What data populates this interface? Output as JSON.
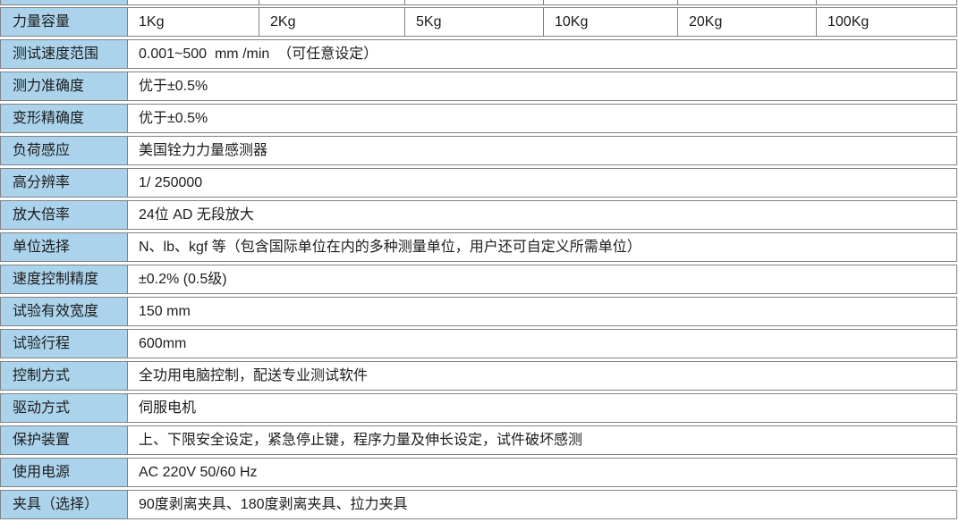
{
  "colors": {
    "label_bg": "#abd4ec",
    "border": "#7f8285",
    "cell_bg": "#ffffff",
    "text": "#1c1c1c"
  },
  "table": {
    "capacity": {
      "label": "力量容量",
      "values": [
        "1Kg",
        "2Kg",
        "5Kg",
        "10Kg",
        "20Kg",
        "100Kg"
      ]
    },
    "rows": [
      {
        "label": "测试速度范围",
        "value": "0.001~500  mm /min  （可任意设定）"
      },
      {
        "label": "测力准确度",
        "value": "优于±0.5%"
      },
      {
        "label": "变形精确度",
        "value": "优于±0.5%"
      },
      {
        "label": "负荷感应",
        "value": "美国铨力力量感测器"
      },
      {
        "label": "高分辨率",
        "value": "1/ 250000"
      },
      {
        "label": "放大倍率",
        "value": "24位 AD 无段放大"
      },
      {
        "label": "单位选择",
        "value": "N、lb、kgf 等（包含国际单位在内的多种测量单位，用户还可自定义所需单位）"
      },
      {
        "label": "速度控制精度",
        "value": "±0.2% (0.5级)"
      },
      {
        "label": "试验有效宽度",
        "value": "150 mm"
      },
      {
        "label": "试验行程",
        "value": "600mm"
      },
      {
        "label": "控制方式",
        "value": "全功用电脑控制，配送专业测试软件"
      },
      {
        "label": "驱动方式",
        "value": "伺服电机"
      },
      {
        "label": "保护装置",
        "value": "上、下限安全设定，紧急停止键，程序力量及伸长设定，试件破坏感测"
      },
      {
        "label": "使用电源",
        "value": "AC 220V 50/60 Hz"
      },
      {
        "label": "夹具（选择）",
        "value": "90度剥离夹具、180度剥离夹具、拉力夹具"
      }
    ]
  }
}
